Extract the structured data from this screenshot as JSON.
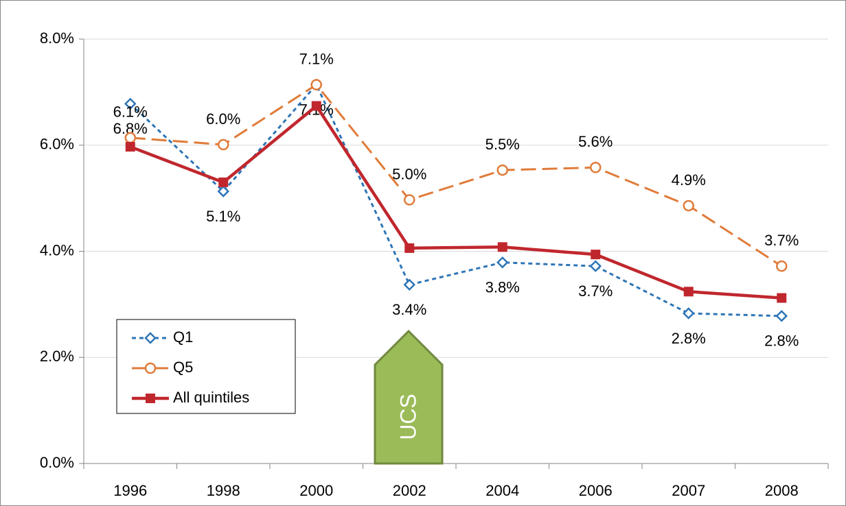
{
  "chart_data": {
    "type": "line",
    "annotation": "UCS",
    "categories": [
      "1996",
      "1998",
      "2000",
      "2002",
      "2004",
      "2006",
      "2007",
      "2008"
    ],
    "ylim": [
      0,
      8
    ],
    "yticks": [
      {
        "value": 0,
        "label": "0.0%"
      },
      {
        "value": 2,
        "label": "2.0%"
      },
      {
        "value": 4,
        "label": "4.0%"
      },
      {
        "value": 6,
        "label": "6.0%"
      },
      {
        "value": 8,
        "label": "8.0%"
      }
    ],
    "grid": true,
    "legend": "lower-left",
    "series": [
      {
        "name": "Q1",
        "color": "#2e75b6",
        "marker": "diamond",
        "dash": "short",
        "values": [
          6.78,
          5.13,
          7.14,
          3.37,
          3.79,
          3.72,
          2.83,
          2.78
        ],
        "value_labels": [
          "6.8%",
          "5.1%",
          "7.1%",
          "3.4%",
          "3.8%",
          "3.7%",
          "2.8%",
          "2.8%"
        ]
      },
      {
        "name": "Q5",
        "color": "#e07b39",
        "marker": "circle",
        "dash": "long",
        "values": [
          6.14,
          6.01,
          7.14,
          4.97,
          5.53,
          5.58,
          4.86,
          3.72
        ],
        "value_labels": [
          "6.1%",
          "6.0%",
          "7.1%",
          "5.0%",
          "5.5%",
          "5.6%",
          "4.9%",
          "3.7%"
        ]
      },
      {
        "name": "All quintiles",
        "color": "#c0272d",
        "marker": "square",
        "dash": "solid",
        "values": [
          5.97,
          5.3,
          6.74,
          4.06,
          4.08,
          3.94,
          3.24,
          3.12
        ]
      }
    ]
  }
}
